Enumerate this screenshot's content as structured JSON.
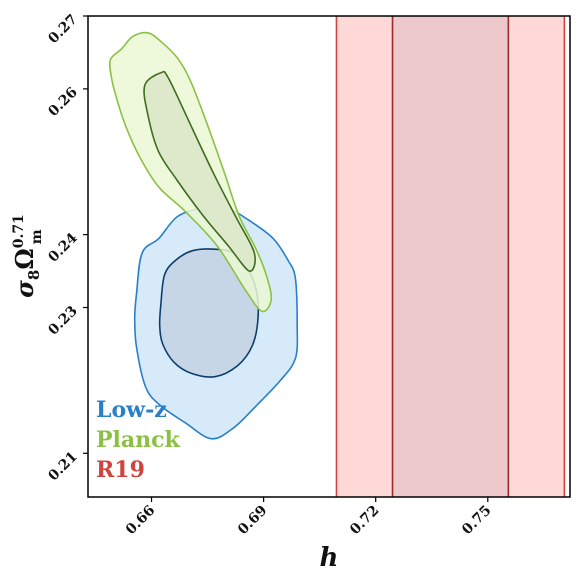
{
  "chart_data": {
    "type": "contour",
    "title": "",
    "xlabel": "h",
    "ylabel": {
      "base": "σ",
      "sub": "8",
      "omega": "Ω",
      "omega_sub": "m",
      "omega_sup": "0.71"
    },
    "xlim": [
      0.643,
      0.772
    ],
    "ylim": [
      0.204,
      0.27
    ],
    "xticks": [
      0.66,
      0.69,
      0.72,
      0.75
    ],
    "xtick_labels": [
      "0.66",
      "0.69",
      "0.72",
      "0.75"
    ],
    "yticks": [
      0.21,
      0.23,
      0.24,
      0.26,
      0.27
    ],
    "ytick_labels": [
      "0.21",
      "0.23",
      "0.24",
      "0.26",
      "0.27"
    ],
    "grid": false,
    "legend": {
      "placement": "bottom-left",
      "style": "colored-text"
    },
    "series": [
      {
        "name": "Low-z",
        "color": "#2a7fc9",
        "fill_outer": "#cfe6f8",
        "fill_inner": "#c6d5e6",
        "line_inner": "#0d3f6e",
        "contours": [
          {
            "level": "outer",
            "points": [
              [
                0.656,
                0.232
              ],
              [
                0.6575,
                0.2375
              ],
              [
                0.662,
                0.2395
              ],
              [
                0.667,
                0.2425
              ],
              [
                0.674,
                0.2437
              ],
              [
                0.68,
                0.2437
              ],
              [
                0.686,
                0.242
              ],
              [
                0.6925,
                0.2395
              ],
              [
                0.6965,
                0.2365
              ],
              [
                0.6985,
                0.234
              ],
              [
                0.699,
                0.2275
              ],
              [
                0.6985,
                0.223
              ],
              [
                0.6945,
                0.22
              ],
              [
                0.688,
                0.2165
              ],
              [
                0.682,
                0.2135
              ],
              [
                0.676,
                0.212
              ],
              [
                0.669,
                0.2142
              ],
              [
                0.6625,
                0.2165
              ],
              [
                0.6585,
                0.219
              ],
              [
                0.656,
                0.2245
              ],
              [
                0.6555,
                0.2285
              ]
            ]
          },
          {
            "level": "inner",
            "points": [
              [
                0.6625,
                0.2305
              ],
              [
                0.6635,
                0.2345
              ],
              [
                0.6665,
                0.2365
              ],
              [
                0.671,
                0.2378
              ],
              [
                0.677,
                0.238
              ],
              [
                0.682,
                0.2375
              ],
              [
                0.6855,
                0.2355
              ],
              [
                0.688,
                0.2325
              ],
              [
                0.6885,
                0.2285
              ],
              [
                0.687,
                0.2248
              ],
              [
                0.683,
                0.222
              ],
              [
                0.677,
                0.2205
              ],
              [
                0.6705,
                0.221
              ],
              [
                0.666,
                0.2225
              ],
              [
                0.663,
                0.225
              ],
              [
                0.6622,
                0.2275
              ]
            ]
          }
        ]
      },
      {
        "name": "Planck",
        "color": "#8cc045",
        "fill_outer": "#eaf8d4",
        "fill_inner": "#dde8cb",
        "line_inner": "#3e6d1e",
        "contours": [
          {
            "level": "outer",
            "points": [
              [
                0.649,
                0.264
              ],
              [
                0.652,
                0.2655
              ],
              [
                0.655,
                0.2672
              ],
              [
                0.659,
                0.2677
              ],
              [
                0.6625,
                0.2665
              ],
              [
                0.667,
                0.2642
              ],
              [
                0.6705,
                0.261
              ],
              [
                0.675,
                0.255
              ],
              [
                0.6795,
                0.2485
              ],
              [
                0.6835,
                0.2425
              ],
              [
                0.688,
                0.238
              ],
              [
                0.691,
                0.234
              ],
              [
                0.692,
                0.231
              ],
              [
                0.6895,
                0.2295
              ],
              [
                0.685,
                0.2325
              ],
              [
                0.6775,
                0.2385
              ],
              [
                0.669,
                0.2432
              ],
              [
                0.662,
                0.2465
              ],
              [
                0.657,
                0.2505
              ],
              [
                0.653,
                0.255
              ],
              [
                0.6505,
                0.259
              ],
              [
                0.6493,
                0.2615
              ]
            ]
          },
          {
            "level": "inner",
            "points": [
              [
                0.6582,
                0.2605
              ],
              [
                0.6625,
                0.2622
              ],
              [
                0.6645,
                0.2615
              ],
              [
                0.6705,
                0.255
              ],
              [
                0.6765,
                0.2485
              ],
              [
                0.6825,
                0.2425
              ],
              [
                0.6875,
                0.2375
              ],
              [
                0.6862,
                0.235
              ],
              [
                0.6805,
                0.2385
              ],
              [
                0.6735,
                0.2428
              ],
              [
                0.6668,
                0.2475
              ],
              [
                0.6618,
                0.2515
              ],
              [
                0.659,
                0.2565
              ]
            ]
          }
        ]
      },
      {
        "name": "R19",
        "color": "#d0443f",
        "fill_outer": "#ffd8d8",
        "fill_inner": "#eec9cc",
        "line_inner": "#a0292c",
        "bands": [
          {
            "level": "outer",
            "x_min": 0.7095,
            "x_max": 0.7705
          },
          {
            "level": "inner",
            "x_min": 0.7245,
            "x_max": 0.7555
          }
        ]
      }
    ]
  }
}
